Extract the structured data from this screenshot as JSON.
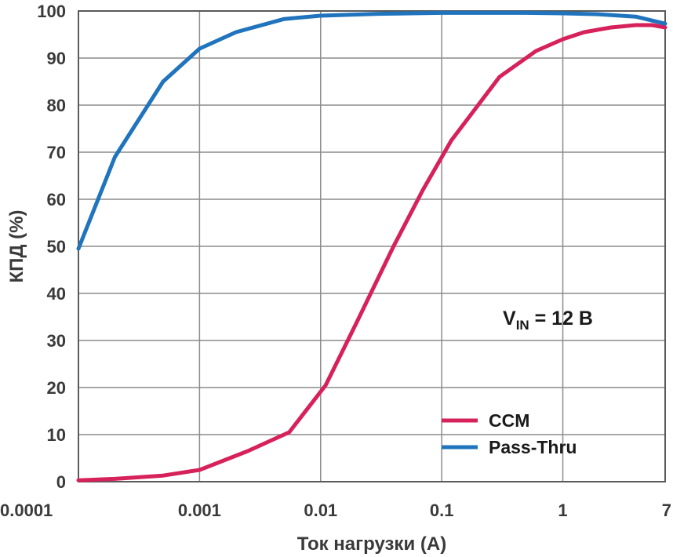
{
  "chart_data": {
    "type": "line",
    "xscale": "log",
    "xlim": [
      0.0001,
      7
    ],
    "ylim": [
      0,
      100
    ],
    "grid": true,
    "xlabel": "Ток нагрузки (А)",
    "ylabel": "КПД (%)",
    "xticks": [
      0.0001,
      0.001,
      0.01,
      0.1,
      1,
      7
    ],
    "xtick_labels": [
      "0.0001",
      "0.001",
      "0.01",
      "0.1",
      "1",
      "7"
    ],
    "yticks": [
      0,
      10,
      20,
      30,
      40,
      50,
      60,
      70,
      80,
      90,
      100
    ],
    "ytick_labels": [
      "0",
      "10",
      "20",
      "30",
      "40",
      "50",
      "60",
      "70",
      "80",
      "90",
      "100"
    ],
    "annotation": {
      "main": "V",
      "sub": "IN",
      "rest": " = 12 В"
    },
    "legend": {
      "placement": "bottom-right"
    },
    "series": [
      {
        "name": "CCM",
        "color": "#d6215a",
        "x": [
          0.0001,
          0.0002,
          0.0005,
          0.001,
          0.0025,
          0.0055,
          0.011,
          0.02,
          0.04,
          0.07,
          0.12,
          0.3,
          0.6,
          1.0,
          1.5,
          2.5,
          4.0,
          5.5,
          7.0
        ],
        "y": [
          0.3,
          0.6,
          1.3,
          2.5,
          6.5,
          10.5,
          20.5,
          34,
          50,
          62,
          72.5,
          86,
          91.5,
          94,
          95.5,
          96.5,
          97.0,
          97.0,
          96.5
        ]
      },
      {
        "name": "Pass-Thru",
        "color": "#1f74bd",
        "x": [
          0.0001,
          0.0002,
          0.0005,
          0.001,
          0.002,
          0.005,
          0.01,
          0.03,
          0.1,
          0.5,
          1.0,
          2.0,
          4.0,
          7.0
        ],
        "y": [
          49.5,
          69,
          85,
          92,
          95.5,
          98.3,
          99,
          99.4,
          99.6,
          99.6,
          99.5,
          99.3,
          98.8,
          97.3
        ]
      }
    ]
  }
}
